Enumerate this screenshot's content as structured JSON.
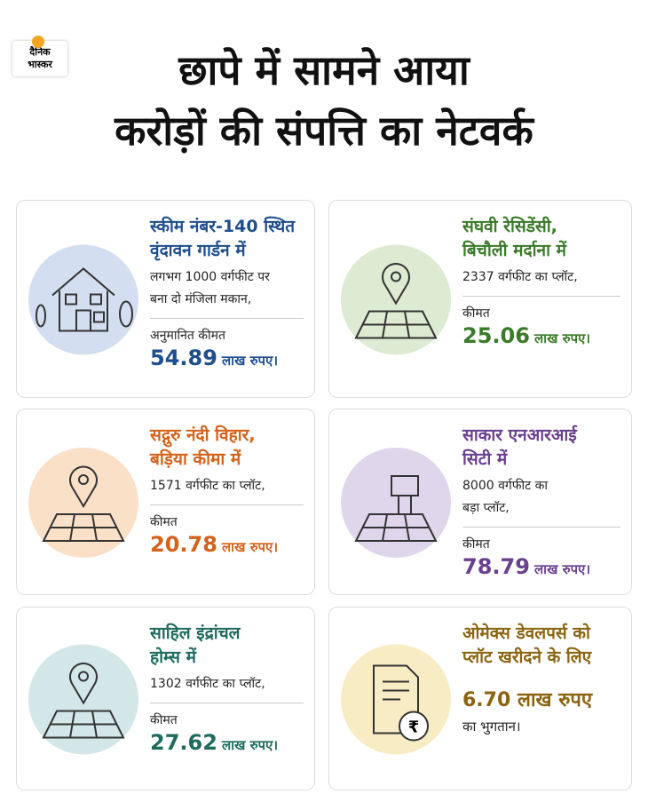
{
  "logo": {
    "lines": [
      "दैनिक",
      "भास्कर"
    ]
  },
  "title": [
    "छापे में सामने आया",
    "करोड़ों की संपत्ति का नेटवर्क"
  ],
  "cards": [
    {
      "color": "#1f4e8c",
      "circle": "#d3dff0",
      "title": [
        "स्कीम नंबर-140 स्थित",
        "वृंदावन गार्डन में"
      ],
      "description": [
        "लगभग 1000 वर्गफीट पर",
        "बना दो मंजिला मकान,"
      ],
      "price_label": "अनुमानित कीमत",
      "price": "54.89",
      "unit": "लाख रुपए।"
    },
    {
      "color": "#3b7a2a",
      "circle": "#dcebd2",
      "title": [
        "संघवी रेसिडेंसी,",
        "बिचौली मर्दाना में"
      ],
      "description": [
        "2337 वर्गफीट का प्लॉट,"
      ],
      "price_label": "कीमत",
      "price": "25.06",
      "unit": "लाख रुपए।"
    },
    {
      "color": "#d4621a",
      "circle": "#fbe0c8",
      "title": [
        "सद्गुरु नंदी विहार,",
        "बड़िया कीमा में"
      ],
      "description": [
        "1571 वर्गफीट का प्लॉट,"
      ],
      "price_label": "कीमत",
      "price": "20.78",
      "unit": "लाख रुपए।"
    },
    {
      "color": "#6a3f8e",
      "circle": "#e0d6ec",
      "title": [
        "साकार एनआरआई",
        "सिटी में"
      ],
      "description": [
        "8000 वर्गफीट का",
        "बड़ा प्लॉट,"
      ],
      "price_label": "कीमत",
      "price": "78.79",
      "unit": "लाख रुपए।"
    },
    {
      "color": "#1f6b5e",
      "circle": "#d3e7e8",
      "title": [
        "साहिल इंद्रांचल",
        "होम्स में"
      ],
      "description": [
        "1302 वर्गफीट का प्लॉट,"
      ],
      "price_label": "कीमत",
      "price": "27.62",
      "unit": "लाख रुपए।"
    },
    {
      "color": "#8a6410",
      "circle": "#f8ecc4",
      "title": [
        "ओमेक्स डेवलपर्स को",
        "प्लॉट खरीदने के लिए"
      ],
      "amount": "6.70 लाख रुपए",
      "note": "का भुगतान।",
      "icon_text": "₹"
    }
  ]
}
